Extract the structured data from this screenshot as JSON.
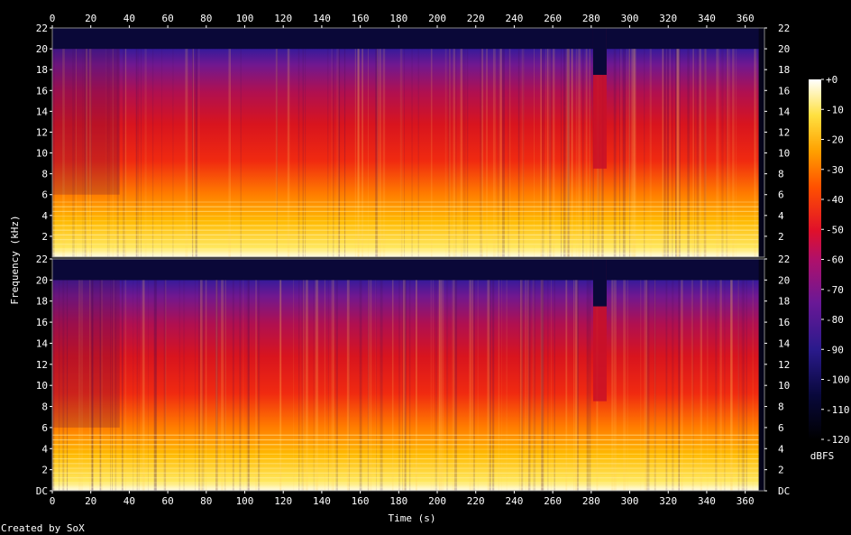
{
  "chart_data": {
    "type": "heatmap",
    "xlabel": "Time (s)",
    "ylabel": "Frequency (kHz)",
    "x_ticks": [
      0,
      20,
      40,
      60,
      80,
      100,
      120,
      140,
      160,
      180,
      200,
      220,
      240,
      260,
      280,
      300,
      320,
      340,
      360
    ],
    "xlim": [
      0,
      370
    ],
    "ylim_khz": [
      0,
      22
    ],
    "y_ticks_top": [
      "2",
      "4",
      "6",
      "8",
      "10",
      "12",
      "14",
      "16",
      "18",
      "20",
      "22"
    ],
    "y_ticks_bottom": [
      "DC",
      "2",
      "4",
      "6",
      "8",
      "10",
      "12",
      "14",
      "16",
      "18",
      "20",
      "22"
    ],
    "y_tick_values": [
      0,
      2,
      4,
      6,
      8,
      10,
      12,
      14,
      16,
      18,
      20,
      22
    ],
    "channels": 2,
    "colorbar": {
      "label": "dBFS",
      "ticks": [
        "+0",
        "-10",
        "-20",
        "-30",
        "-40",
        "-50",
        "-60",
        "-70",
        "-80",
        "-90",
        "-100",
        "-110",
        "-120"
      ],
      "range_dbfs": [
        -120,
        0
      ]
    },
    "features": {
      "lowpass_cutoff_khz": 20,
      "dropout_interval_s": [
        281,
        288
      ],
      "end_of_audio_s": 367
    }
  },
  "footer": {
    "credit": "Created by SoX"
  }
}
